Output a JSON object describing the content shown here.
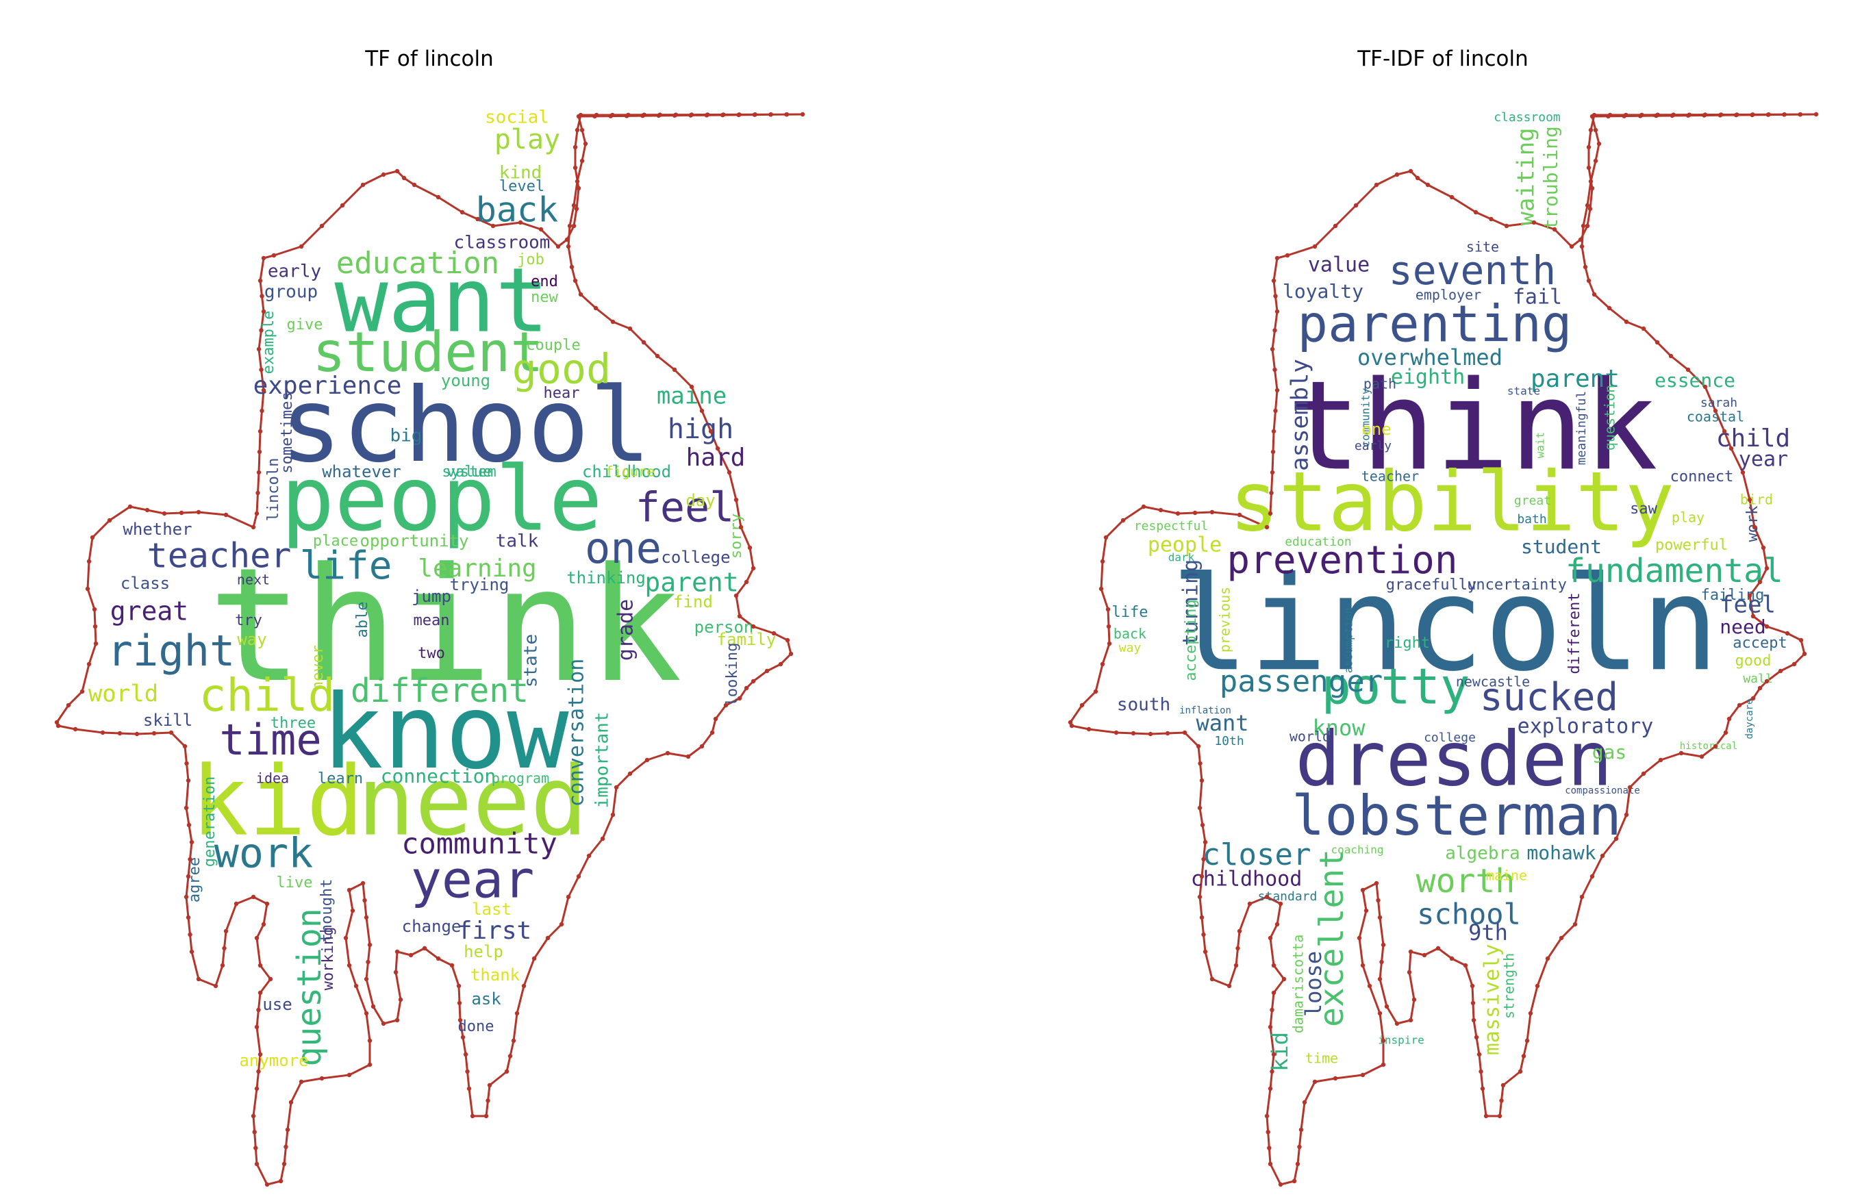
{
  "panels": [
    {
      "title": "TF of lincoln",
      "words": [
        {
          "text": "think",
          "color": "#5ec962"
        },
        {
          "text": "school",
          "color": "#3b528b"
        },
        {
          "text": "want",
          "color": "#35b779"
        },
        {
          "text": "people",
          "color": "#3fbc73"
        },
        {
          "text": "know",
          "color": "#21918c"
        },
        {
          "text": "kid",
          "color": "#b5de2b"
        },
        {
          "text": "need",
          "color": "#a0da39"
        },
        {
          "text": "student",
          "color": "#5ec962"
        },
        {
          "text": "year",
          "color": "#443983"
        },
        {
          "text": "work",
          "color": "#2a788e"
        },
        {
          "text": "time",
          "color": "#472d7b"
        },
        {
          "text": "child",
          "color": "#b5de2b"
        },
        {
          "text": "right",
          "color": "#31688e"
        },
        {
          "text": "teacher",
          "color": "#3e4989"
        },
        {
          "text": "one",
          "color": "#3b528b"
        },
        {
          "text": "feel",
          "color": "#46327e"
        },
        {
          "text": "life",
          "color": "#2a788e"
        },
        {
          "text": "good",
          "color": "#a0da39"
        },
        {
          "text": "different",
          "color": "#4ac16d"
        },
        {
          "text": "back",
          "color": "#2a788e"
        },
        {
          "text": "education",
          "color": "#6ccd5a"
        },
        {
          "text": "experience",
          "color": "#3e4989"
        },
        {
          "text": "community",
          "color": "#481f70"
        },
        {
          "text": "question",
          "color": "#35b779"
        },
        {
          "text": "high",
          "color": "#3e4989"
        },
        {
          "text": "maine",
          "color": "#2db27d"
        },
        {
          "text": "hard",
          "color": "#482173"
        },
        {
          "text": "play",
          "color": "#a0da39"
        },
        {
          "text": "great",
          "color": "#482173"
        },
        {
          "text": "learning",
          "color": "#6ccd5a"
        },
        {
          "text": "parent",
          "color": "#2db27d"
        },
        {
          "text": "first",
          "color": "#3e4989"
        },
        {
          "text": "world",
          "color": "#c0df25"
        },
        {
          "text": "conversation",
          "color": "#2a788e"
        },
        {
          "text": "connection",
          "color": "#2db27d"
        },
        {
          "text": "important",
          "color": "#2db27d"
        },
        {
          "text": "social",
          "color": "#dde318"
        },
        {
          "text": "kind",
          "color": "#a0da39"
        },
        {
          "text": "level",
          "color": "#2a788e"
        },
        {
          "text": "classroom",
          "color": "#46327e"
        },
        {
          "text": "early",
          "color": "#46327e"
        },
        {
          "text": "group",
          "color": "#3b528b"
        },
        {
          "text": "job",
          "color": "#a0da39"
        },
        {
          "text": "end",
          "color": "#440154"
        },
        {
          "text": "new",
          "color": "#6ccd5a"
        },
        {
          "text": "give",
          "color": "#6ccd5a"
        },
        {
          "text": "example",
          "color": "#2db27d"
        },
        {
          "text": "couple",
          "color": "#6ccd5a"
        },
        {
          "text": "young",
          "color": "#3fbc73"
        },
        {
          "text": "hear",
          "color": "#472d7b"
        },
        {
          "text": "big",
          "color": "#2a788e"
        },
        {
          "text": "value",
          "color": "#2db27d"
        },
        {
          "text": "childhood",
          "color": "#2db27d"
        },
        {
          "text": "sometimes",
          "color": "#3e4989"
        },
        {
          "text": "lincoln",
          "color": "#3b528b"
        },
        {
          "text": "whatever",
          "color": "#31688e"
        },
        {
          "text": "system",
          "color": "#2db27d"
        },
        {
          "text": "figure",
          "color": "#b5de2b"
        },
        {
          "text": "whether",
          "color": "#3e4989"
        },
        {
          "text": "place",
          "color": "#6ccd5a"
        },
        {
          "text": "opportunity",
          "color": "#6ccd5a"
        },
        {
          "text": "talk",
          "color": "#443983"
        },
        {
          "text": "day",
          "color": "#b5de2b"
        },
        {
          "text": "sorry",
          "color": "#6ccd5a"
        },
        {
          "text": "college",
          "color": "#3e4989"
        },
        {
          "text": "class",
          "color": "#3b528b"
        },
        {
          "text": "next",
          "color": "#443983"
        },
        {
          "text": "trying",
          "color": "#3b528b"
        },
        {
          "text": "thinking",
          "color": "#2db27d"
        },
        {
          "text": "find",
          "color": "#b5de2b"
        },
        {
          "text": "try",
          "color": "#443983"
        },
        {
          "text": "way",
          "color": "#b5de2b"
        },
        {
          "text": "jump",
          "color": "#3e4989"
        },
        {
          "text": "mean",
          "color": "#472d7b"
        },
        {
          "text": "grade",
          "color": "#472d7b"
        },
        {
          "text": "person",
          "color": "#3fbc73"
        },
        {
          "text": "family",
          "color": "#b5de2b"
        },
        {
          "text": "looking",
          "color": "#3b528b"
        },
        {
          "text": "never",
          "color": "#b5de2b"
        },
        {
          "text": "able",
          "color": "#2a788e"
        },
        {
          "text": "two",
          "color": "#481f70"
        },
        {
          "text": "state",
          "color": "#31688e"
        },
        {
          "text": "skill",
          "color": "#3e4989"
        },
        {
          "text": "three",
          "color": "#2db27d"
        },
        {
          "text": "idea",
          "color": "#472d7b"
        },
        {
          "text": "learn",
          "color": "#2a788e"
        },
        {
          "text": "program",
          "color": "#3fbc73"
        },
        {
          "text": "generation",
          "color": "#2db27d"
        },
        {
          "text": "agree",
          "color": "#31688e"
        },
        {
          "text": "live",
          "color": "#6ccd5a"
        },
        {
          "text": "thought",
          "color": "#3b528b"
        },
        {
          "text": "working",
          "color": "#472d7b"
        },
        {
          "text": "last",
          "color": "#dde318"
        },
        {
          "text": "change",
          "color": "#3e4989"
        },
        {
          "text": "help",
          "color": "#b5de2b"
        },
        {
          "text": "thank",
          "color": "#dde318"
        },
        {
          "text": "ask",
          "color": "#2a788e"
        },
        {
          "text": "use",
          "color": "#3e4989"
        },
        {
          "text": "done",
          "color": "#3e4989"
        },
        {
          "text": "anymore",
          "color": "#dde318"
        }
      ]
    },
    {
      "title": "TF-IDF of lincoln",
      "words": [
        {
          "text": "lincoln",
          "color": "#31688e"
        },
        {
          "text": "think",
          "color": "#482173"
        },
        {
          "text": "stability",
          "color": "#b5de2b"
        },
        {
          "text": "dresden",
          "color": "#443983"
        },
        {
          "text": "lobsterman",
          "color": "#3b528b"
        },
        {
          "text": "parenting",
          "color": "#3b528b"
        },
        {
          "text": "potty",
          "color": "#2db27d"
        },
        {
          "text": "sucked",
          "color": "#3e4989"
        },
        {
          "text": "prevention",
          "color": "#481f70"
        },
        {
          "text": "seventh",
          "color": "#3b528b"
        },
        {
          "text": "fundamental",
          "color": "#2db27d"
        },
        {
          "text": "passenger",
          "color": "#2a788e"
        },
        {
          "text": "worth",
          "color": "#6ccd5a"
        },
        {
          "text": "school",
          "color": "#31688e"
        },
        {
          "text": "closer",
          "color": "#2a788e"
        },
        {
          "text": "excellent",
          "color": "#4ac16d"
        },
        {
          "text": "overwhelmed",
          "color": "#2a788e"
        },
        {
          "text": "assembly",
          "color": "#3e4989"
        },
        {
          "text": "waiting",
          "color": "#6ccd5a"
        },
        {
          "text": "troubling",
          "color": "#6ccd5a"
        },
        {
          "text": "value",
          "color": "#472d7b"
        },
        {
          "text": "loyalty",
          "color": "#3b528b"
        },
        {
          "text": "fail",
          "color": "#3e4989"
        },
        {
          "text": "parent",
          "color": "#21918c"
        },
        {
          "text": "eighth",
          "color": "#2db27d"
        },
        {
          "text": "essence",
          "color": "#2db27d"
        },
        {
          "text": "child",
          "color": "#443983"
        },
        {
          "text": "year",
          "color": "#443983"
        },
        {
          "text": "feel",
          "color": "#3b528b"
        },
        {
          "text": "need",
          "color": "#481f70"
        },
        {
          "text": "people",
          "color": "#c0df25"
        },
        {
          "text": "turning",
          "color": "#3b528b"
        },
        {
          "text": "student",
          "color": "#31688e"
        },
        {
          "text": "exploratory",
          "color": "#3e4989"
        },
        {
          "text": "know",
          "color": "#4ac16d"
        },
        {
          "text": "want",
          "color": "#31688e"
        },
        {
          "text": "south",
          "color": "#3e4989"
        },
        {
          "text": "childhood",
          "color": "#481f70"
        },
        {
          "text": "mohawk",
          "color": "#2a788e"
        },
        {
          "text": "algebra",
          "color": "#6ccd5a"
        },
        {
          "text": "9th",
          "color": "#3e4989"
        },
        {
          "text": "gas",
          "color": "#6ccd5a"
        },
        {
          "text": "massively",
          "color": "#b5de2b"
        },
        {
          "text": "loose",
          "color": "#3b528b"
        },
        {
          "text": "kid",
          "color": "#2db27d"
        },
        {
          "text": "damariscotta",
          "color": "#6ccd5a"
        },
        {
          "text": "strength",
          "color": "#3fbc73"
        },
        {
          "text": "classroom",
          "color": "#2db27d"
        },
        {
          "text": "site",
          "color": "#3e4989"
        },
        {
          "text": "education",
          "color": "#6ccd5a"
        },
        {
          "text": "employer",
          "color": "#3b528b"
        },
        {
          "text": "path",
          "color": "#3b528b"
        },
        {
          "text": "state",
          "color": "#3b528b"
        },
        {
          "text": "community",
          "color": "#2a788e"
        },
        {
          "text": "one",
          "color": "#dde318"
        },
        {
          "text": "early",
          "color": "#3e4989"
        },
        {
          "text": "teacher",
          "color": "#31688e"
        },
        {
          "text": "meaningful",
          "color": "#3b528b"
        },
        {
          "text": "question",
          "color": "#3fbc73"
        },
        {
          "text": "wait",
          "color": "#6ccd5a"
        },
        {
          "text": "sarah",
          "color": "#3b528b"
        },
        {
          "text": "coastal",
          "color": "#2a788e"
        },
        {
          "text": "connect",
          "color": "#3e4989"
        },
        {
          "text": "great",
          "color": "#6ccd5a"
        },
        {
          "text": "bath",
          "color": "#2a788e"
        },
        {
          "text": "saw",
          "color": "#3e4989"
        },
        {
          "text": "play",
          "color": "#b5de2b"
        },
        {
          "text": "bird",
          "color": "#b5de2b"
        },
        {
          "text": "work",
          "color": "#3b528b"
        },
        {
          "text": "respectful",
          "color": "#6ccd5a"
        },
        {
          "text": "dark",
          "color": "#2db27d"
        },
        {
          "text": "powerful",
          "color": "#b5de2b"
        },
        {
          "text": "gracefully",
          "color": "#3e4989"
        },
        {
          "text": "uncertainty",
          "color": "#3b528b"
        },
        {
          "text": "failing",
          "color": "#31688e"
        },
        {
          "text": "accept",
          "color": "#31688e"
        },
        {
          "text": "good",
          "color": "#b5de2b"
        },
        {
          "text": "wall",
          "color": "#6ccd5a"
        },
        {
          "text": "life",
          "color": "#2a788e"
        },
        {
          "text": "back",
          "color": "#3fbc73"
        },
        {
          "text": "way",
          "color": "#c0df25"
        },
        {
          "text": "accepting",
          "color": "#4ac16d"
        },
        {
          "text": "previous",
          "color": "#b5de2b"
        },
        {
          "text": "assumption",
          "color": "#2a788e"
        },
        {
          "text": "right",
          "color": "#2db27d"
        },
        {
          "text": "different",
          "color": "#481f70"
        },
        {
          "text": "newcastle",
          "color": "#3b528b"
        },
        {
          "text": "inflation",
          "color": "#31688e"
        },
        {
          "text": "10th",
          "color": "#2a788e"
        },
        {
          "text": "world",
          "color": "#3e4989"
        },
        {
          "text": "college",
          "color": "#3b528b"
        },
        {
          "text": "historical",
          "color": "#6ccd5a"
        },
        {
          "text": "daycare",
          "color": "#2a788e"
        },
        {
          "text": "compassionate",
          "color": "#3b528b"
        },
        {
          "text": "coaching",
          "color": "#6ccd5a"
        },
        {
          "text": "standard",
          "color": "#2a788e"
        },
        {
          "text": "maine",
          "color": "#dde318"
        },
        {
          "text": "inspire",
          "color": "#2db27d"
        },
        {
          "text": "time",
          "color": "#b5de2b"
        }
      ]
    }
  ],
  "outline_color": "#b5352b"
}
